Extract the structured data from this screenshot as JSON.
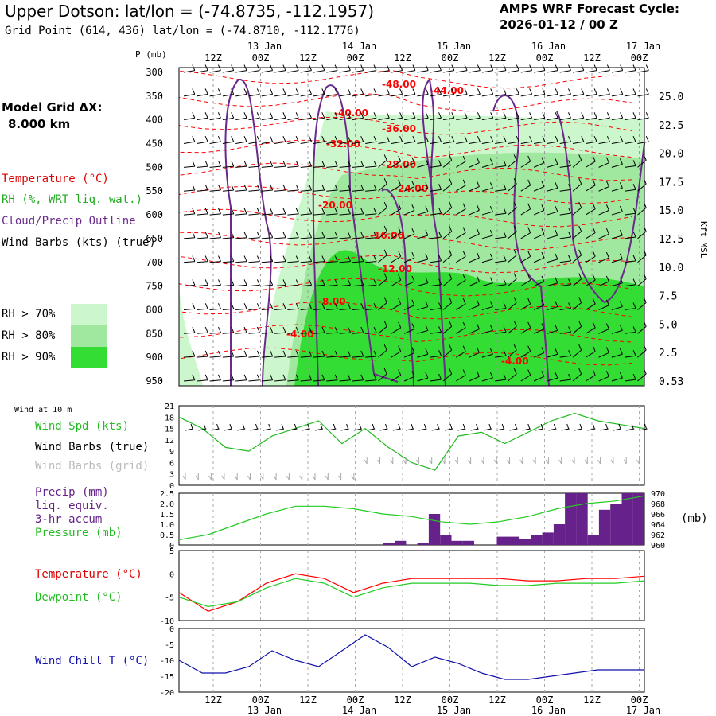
{
  "header": {
    "title": "Upper Dotson:  lat/lon = (-74.8735, -112.1957)",
    "subtitle": "Grid Point (614, 436) lat/lon = (-74.8710, -112.1776)",
    "cycle_label": "AMPS WRF Forecast Cycle:",
    "cycle_value": "2026-01-12 / 00  Z",
    "grid_label": "Model Grid ΔX:",
    "grid_value": "8.000 km"
  },
  "legend_top": {
    "temperature": "Temperature (°C)",
    "rh": "RH (%, WRT liq. wat.)",
    "cloud": "Cloud/Precip Outline",
    "wind": "Wind Barbs (kts) (true)",
    "rh70": "RH > 70%",
    "rh80": "RH > 80%",
    "rh90": "RH > 90%",
    "pressure_axis_label": "P (mb)",
    "height_axis_label": "Kft MSL"
  },
  "legend_wind": {
    "wind_at": "Wind at 10 m",
    "speed": "Wind Spd (kts)",
    "barbs_true": "Wind Barbs (true)",
    "barbs_grid": "Wind Barbs (grid)"
  },
  "legend_precip": {
    "line1": "Precip (mm)",
    "line2": "liq. equiv.",
    "line3": "3-hr accum",
    "line4": "Pressure (mb)",
    "units": "(mb)"
  },
  "legend_temp": {
    "temp": "Temperature (°C)",
    "dew": "Dewpoint (°C)"
  },
  "legend_chill": {
    "chill": "Wind Chill T (°C)"
  },
  "colors": {
    "temperature": "#ff0000",
    "rh70": "#ccf7cc",
    "rh80": "#a0e8a0",
    "rh90": "#33dd33",
    "cloud": "#6a2a8a",
    "precip": "#66228a",
    "pressure": "#22cc22",
    "dewpoint": "#22cc22",
    "windchill": "#1111aa",
    "wind_grid": "#aaaaaa"
  },
  "chart_data": {
    "type": "line",
    "time_ticks_top": [
      "12Z",
      "00Z",
      "12Z",
      "00Z",
      "12Z",
      "00Z",
      "12Z",
      "00Z",
      "12Z",
      "00Z"
    ],
    "date_ticks_top": [
      "13 Jan",
      "14 Jan",
      "15 Jan",
      "16 Jan",
      "17 Jan"
    ],
    "time_ticks_bottom": [
      "12Z",
      "00Z",
      "12Z",
      "00Z",
      "12Z",
      "00Z",
      "12Z",
      "00Z",
      "12Z",
      "00Z"
    ],
    "date_ticks_bottom": [
      "13 Jan",
      "14 Jan",
      "15 Jan",
      "16 Jan",
      "17 Jan"
    ],
    "forecast_hours": [
      0,
      6,
      12,
      18,
      24,
      30,
      36,
      42,
      48,
      54,
      60,
      66,
      72,
      78,
      84,
      90,
      96,
      102,
      108,
      114,
      120
    ],
    "cross_section": {
      "pressure_levels": [
        300,
        350,
        400,
        450,
        500,
        550,
        600,
        650,
        700,
        750,
        800,
        850,
        900,
        950
      ],
      "height_ticks": [
        "25.0",
        "22.5",
        "20.0",
        "17.5",
        "15.0",
        "12.5",
        "10.0",
        "7.5",
        "5.0",
        "2.5",
        "0.53"
      ],
      "temperature_contour_labels": [
        "-48.00",
        "-44.00",
        "-40.00",
        "-36.00",
        "-32.00",
        "-28.00",
        "-24.00",
        "-20.00",
        "-16.00",
        "-12.00",
        "-8.00",
        "-4.00",
        "-4.00"
      ]
    },
    "wind_10m": {
      "ylim": [
        0,
        21
      ],
      "yticks": [
        0,
        3,
        6,
        9,
        12,
        15,
        18,
        21
      ],
      "speed_kts": [
        18,
        15,
        10,
        9,
        13,
        15,
        17,
        11,
        15,
        10,
        6,
        4,
        13,
        14,
        11,
        14,
        17,
        19,
        17,
        16,
        15
      ]
    },
    "precip_pressure": {
      "precip_ylim": [
        0,
        2.5
      ],
      "precip_yticks": [
        "0",
        "0.5",
        "1.0",
        "1.5",
        "2.0",
        "2.5"
      ],
      "pressure_ylim": [
        960,
        970
      ],
      "pressure_yticks": [
        "960",
        "962",
        "964",
        "966",
        "968",
        "970"
      ],
      "precip_mm_3hr": [
        0,
        0,
        0,
        0,
        0,
        0,
        0,
        0,
        0,
        0,
        0,
        0,
        0,
        0,
        0,
        0,
        0,
        0,
        0.1,
        0.2,
        0,
        0.1,
        1.5,
        0.5,
        0.2,
        0.2,
        0,
        0,
        0.4,
        0.4,
        0.3,
        0.5,
        0.6,
        1.0,
        2.5,
        2.5,
        0.5,
        1.7,
        2.0,
        2.5,
        2.5
      ],
      "pressure_mb": [
        961,
        962,
        964,
        966,
        967.5,
        967.5,
        967,
        966,
        965.5,
        964.5,
        964,
        964.5,
        965.5,
        967,
        968,
        968.5,
        969.5
      ]
    },
    "temperature": {
      "ylim": [
        -10,
        5
      ],
      "yticks": [
        "5",
        "0",
        "-5",
        "-10"
      ],
      "temp_c": [
        -4,
        -8,
        -6,
        -2,
        0,
        -1,
        -4,
        -2,
        -1,
        -1,
        -1,
        -1,
        -1.5,
        -1.5,
        -1,
        -1,
        -0.5
      ],
      "dewpoint_c": [
        -5,
        -7,
        -6,
        -3,
        -1,
        -2,
        -5,
        -3,
        -2,
        -2,
        -2,
        -2.5,
        -2.5,
        -2,
        -2,
        -2,
        -1.5
      ]
    },
    "wind_chill": {
      "ylim": [
        -20,
        0
      ],
      "yticks": [
        "0",
        "-5",
        "-10",
        "-15",
        "-20"
      ],
      "chill_c": [
        -10,
        -14,
        -14,
        -12,
        -7,
        -10,
        -12,
        -7,
        -2,
        -6,
        -12,
        -9,
        -11,
        -14,
        -16,
        -16,
        -15,
        -14,
        -13,
        -13,
        -13
      ]
    }
  }
}
